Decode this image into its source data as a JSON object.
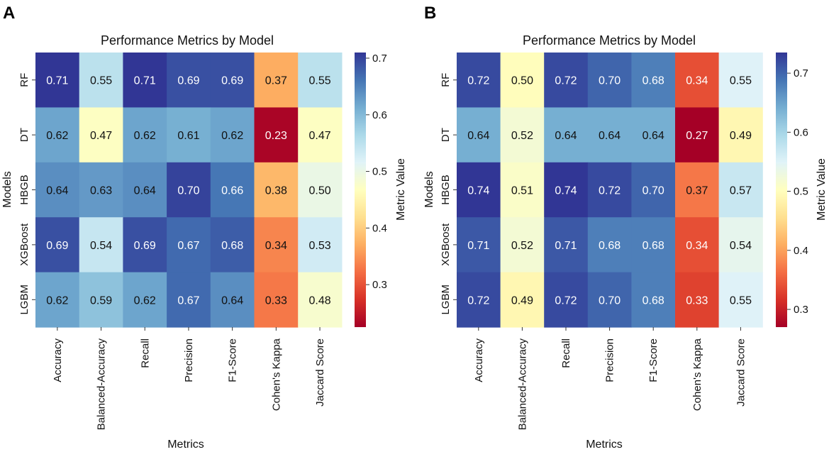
{
  "chart_data": [
    {
      "panel": "A",
      "type": "heatmap",
      "title": "Performance Metrics by Model",
      "xlabel": "Metrics",
      "ylabel": "Models",
      "rows": [
        "RF",
        "DT",
        "HBGB",
        "XGBoost",
        "LGBM"
      ],
      "columns": [
        "Accuracy",
        "Balanced-Accuracy",
        "Recall",
        "Precision",
        "F1-Score",
        "Cohen's Kappa",
        "Jaccard Score"
      ],
      "values": [
        [
          0.71,
          0.55,
          0.71,
          0.69,
          0.69,
          0.37,
          0.55
        ],
        [
          0.62,
          0.47,
          0.62,
          0.61,
          0.62,
          0.23,
          0.47
        ],
        [
          0.64,
          0.63,
          0.64,
          0.7,
          0.66,
          0.38,
          0.5
        ],
        [
          0.69,
          0.54,
          0.69,
          0.67,
          0.68,
          0.34,
          0.53
        ],
        [
          0.62,
          0.59,
          0.62,
          0.67,
          0.64,
          0.33,
          0.48
        ]
      ],
      "labels": [
        [
          "0.71",
          "0.55",
          "0.71",
          "0.69",
          "0.69",
          "0.37",
          "0.55"
        ],
        [
          "0.62",
          "0.47",
          "0.62",
          "0.61",
          "0.62",
          "0.23",
          "0.47"
        ],
        [
          "0.64",
          "0.63",
          "0.64",
          "0.70",
          "0.66",
          "0.38",
          "0.50"
        ],
        [
          "0.69",
          "0.54",
          "0.69",
          "0.67",
          "0.68",
          "0.34",
          "0.53"
        ],
        [
          "0.62",
          "0.59",
          "0.62",
          "0.67",
          "0.64",
          "0.33",
          "0.48"
        ]
      ],
      "colorbar": {
        "label": "Metric Value",
        "range": [
          0.225,
          0.71
        ],
        "ticks": [
          0.3,
          0.4,
          0.5,
          0.6,
          0.7
        ],
        "tick_labels": [
          "0.3",
          "0.4",
          "0.5",
          "0.6",
          "0.7"
        ],
        "colormap": "RdYlBu"
      }
    },
    {
      "panel": "B",
      "type": "heatmap",
      "title": "Performance Metrics by Model",
      "xlabel": "Metrics",
      "ylabel": "Models",
      "rows": [
        "RF",
        "DT",
        "HBGB",
        "XGBoost",
        "LGBM"
      ],
      "columns": [
        "Accuracy",
        "Balanced-Accuracy",
        "Recall",
        "Precision",
        "F1-Score",
        "Cohen's Kappa",
        "Jaccard Score"
      ],
      "values": [
        [
          0.72,
          0.5,
          0.72,
          0.7,
          0.68,
          0.34,
          0.55
        ],
        [
          0.64,
          0.52,
          0.64,
          0.64,
          0.64,
          0.27,
          0.49
        ],
        [
          0.74,
          0.51,
          0.74,
          0.72,
          0.7,
          0.37,
          0.57
        ],
        [
          0.71,
          0.52,
          0.71,
          0.68,
          0.68,
          0.34,
          0.54
        ],
        [
          0.72,
          0.49,
          0.72,
          0.7,
          0.68,
          0.33,
          0.55
        ]
      ],
      "labels": [
        [
          "0.72",
          "0.50",
          "0.72",
          "0.70",
          "0.68",
          "0.34",
          "0.55"
        ],
        [
          "0.64",
          "0.52",
          "0.64",
          "0.64",
          "0.64",
          "0.27",
          "0.49"
        ],
        [
          "0.74",
          "0.51",
          "0.74",
          "0.72",
          "0.70",
          "0.37",
          "0.57"
        ],
        [
          "0.71",
          "0.52",
          "0.71",
          "0.68",
          "0.68",
          "0.34",
          "0.54"
        ],
        [
          "0.72",
          "0.49",
          "0.72",
          "0.70",
          "0.68",
          "0.33",
          "0.55"
        ]
      ],
      "colorbar": {
        "label": "Metric Value",
        "range": [
          0.27,
          0.735
        ],
        "ticks": [
          0.3,
          0.4,
          0.5,
          0.6,
          0.7
        ],
        "tick_labels": [
          "0.3",
          "0.4",
          "0.5",
          "0.6",
          "0.7"
        ],
        "colormap": "RdYlBu"
      }
    }
  ]
}
